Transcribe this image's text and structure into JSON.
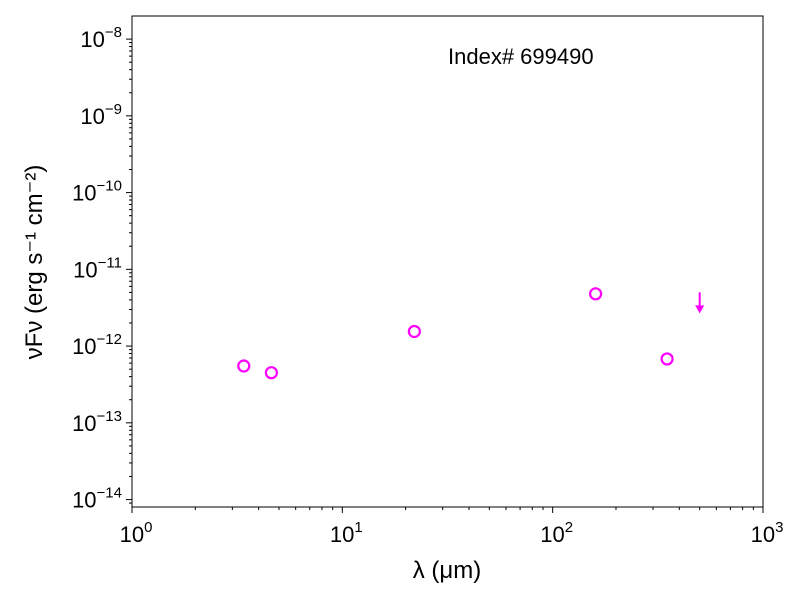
{
  "chart_data": {
    "type": "scatter",
    "title": "",
    "annotation": "Index# 699490",
    "xlabel": "λ (μm)",
    "ylabel": "νFν (erg s⁻¹ cm⁻²)",
    "xscale": "log",
    "yscale": "log",
    "xlim": [
      1,
      1000
    ],
    "ylim": [
      8e-15,
      2e-08
    ],
    "x_ticks": [
      {
        "value": 1,
        "base": "10",
        "exp": "0"
      },
      {
        "value": 10,
        "base": "10",
        "exp": "1"
      },
      {
        "value": 100,
        "base": "10",
        "exp": "2"
      },
      {
        "value": 1000,
        "base": "10",
        "exp": "3"
      }
    ],
    "y_ticks": [
      {
        "value": 1e-14,
        "base": "10",
        "exp": "−14"
      },
      {
        "value": 1e-13,
        "base": "10",
        "exp": "−13"
      },
      {
        "value": 1e-12,
        "base": "10",
        "exp": "−12"
      },
      {
        "value": 1e-11,
        "base": "10",
        "exp": "−11"
      },
      {
        "value": 1e-10,
        "base": "10",
        "exp": "−10"
      },
      {
        "value": 1e-09,
        "base": "10",
        "exp": "−9"
      },
      {
        "value": 1e-08,
        "base": "10",
        "exp": "−8"
      }
    ],
    "grid": false,
    "marker_color": "#ff00ff",
    "points": [
      {
        "x": 3.4,
        "y": 5.5e-13
      },
      {
        "x": 4.6,
        "y": 4.5e-13
      },
      {
        "x": 22,
        "y": 1.55e-12
      },
      {
        "x": 160,
        "y": 4.8e-12
      },
      {
        "x": 350,
        "y": 6.8e-13
      }
    ],
    "upper_limits": [
      {
        "x": 500,
        "y": 3.5e-12
      }
    ]
  }
}
